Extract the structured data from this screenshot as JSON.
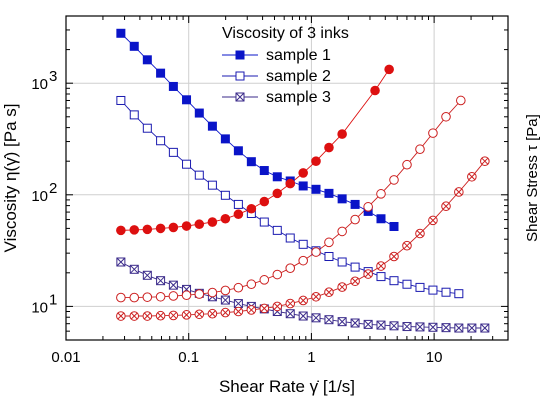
{
  "chart_data": {
    "type": "scatter",
    "title": "",
    "xlabel": "Shear Rate  γ̇ [1/s]",
    "ylabel": "Viscosity η(γ̇) [Pa s]",
    "y2label": "Shear Stress τ [Pa]",
    "xscale": "log",
    "yscale": "log",
    "xlim": [
      0.01,
      40
    ],
    "ylim": [
      5,
      4000
    ],
    "grid": true,
    "x_tick_labels": [
      "0.01",
      "0.1",
      "1",
      "10"
    ],
    "x_tick_values": [
      0.01,
      0.1,
      1,
      10
    ],
    "y_tick_values": [
      10,
      100,
      1000
    ],
    "y_tick_bases": [
      "10",
      "10",
      "10"
    ],
    "y_tick_exponents": [
      "1",
      "2",
      "3"
    ],
    "legend": {
      "title": "Viscosity of 3 inks",
      "placement": "top-center"
    },
    "series": [
      {
        "name": "sample 1",
        "quantity": "viscosity",
        "color": "#0a14c8",
        "marker": "filled-square",
        "x": [
          0.028,
          0.036,
          0.046,
          0.059,
          0.075,
          0.096,
          0.122,
          0.156,
          0.199,
          0.254,
          0.324,
          0.413,
          0.527,
          0.672,
          0.857,
          1.09,
          1.39,
          1.78,
          2.27,
          2.9,
          3.69,
          4.71
        ],
        "y": [
          2800,
          2140,
          1620,
          1230,
          935,
          710,
          540,
          412,
          317,
          248,
          198,
          165,
          145,
          133,
          120,
          112,
          103,
          92,
          82,
          71,
          61,
          52
        ]
      },
      {
        "name": "sample 2",
        "quantity": "viscosity",
        "color": "#1a1ab0",
        "marker": "open-square",
        "x": [
          0.028,
          0.036,
          0.046,
          0.059,
          0.075,
          0.096,
          0.122,
          0.156,
          0.199,
          0.254,
          0.324,
          0.413,
          0.527,
          0.672,
          0.857,
          1.09,
          1.39,
          1.78,
          2.27,
          2.9,
          3.69,
          4.71,
          6.01,
          7.67,
          9.78,
          12.5,
          15.9
        ],
        "y": [
          700,
          520,
          395,
          305,
          240,
          188,
          150,
          122,
          99,
          82,
          68,
          57,
          48,
          41,
          36,
          31.5,
          28,
          25,
          22.5,
          20.5,
          18.5,
          17,
          15.8,
          14.8,
          14,
          13.4,
          13
        ]
      },
      {
        "name": "sample 3",
        "quantity": "viscosity",
        "color": "#3a2a8a",
        "marker": "crossed-square",
        "x": [
          0.028,
          0.036,
          0.046,
          0.059,
          0.075,
          0.096,
          0.122,
          0.156,
          0.199,
          0.254,
          0.324,
          0.413,
          0.527,
          0.672,
          0.857,
          1.09,
          1.39,
          1.78,
          2.27,
          2.9,
          3.69,
          4.71,
          6.01,
          7.67,
          9.78,
          12.5,
          15.9,
          20.3,
          25.9
        ],
        "y": [
          25,
          21.5,
          19,
          17,
          15.5,
          14.2,
          13.1,
          12.2,
          11.4,
          10.6,
          10,
          9.5,
          9.0,
          8.6,
          8.2,
          7.9,
          7.6,
          7.3,
          7.1,
          6.9,
          6.8,
          6.7,
          6.6,
          6.55,
          6.5,
          6.45,
          6.4,
          6.4,
          6.4
        ]
      },
      {
        "name": "",
        "quantity": "shear stress",
        "color": "#dd1010",
        "marker": "filled-circle",
        "x": [
          0.028,
          0.036,
          0.046,
          0.059,
          0.075,
          0.096,
          0.122,
          0.156,
          0.199,
          0.254,
          0.324,
          0.413,
          0.527,
          0.672,
          0.857,
          1.09,
          1.39,
          1.78,
          3.3,
          4.3
        ],
        "y": [
          48,
          48.5,
          49,
          50,
          51,
          52.5,
          54.5,
          57,
          61,
          67,
          75,
          87,
          103,
          126,
          157,
          200,
          265,
          350,
          860,
          1330
        ]
      },
      {
        "name": "",
        "quantity": "shear stress",
        "color": "#cc2020",
        "marker": "open-circle",
        "x": [
          0.028,
          0.036,
          0.046,
          0.059,
          0.075,
          0.096,
          0.122,
          0.156,
          0.199,
          0.254,
          0.324,
          0.413,
          0.527,
          0.672,
          0.857,
          1.09,
          1.39,
          1.78,
          2.27,
          2.9,
          3.69,
          4.71,
          6.01,
          7.67,
          9.78,
          12.5,
          16.5
        ],
        "y": [
          12,
          12,
          12.1,
          12.2,
          12.4,
          12.6,
          12.9,
          13.3,
          13.9,
          14.7,
          15.8,
          17.3,
          19.3,
          22,
          25.7,
          30.7,
          37.5,
          47,
          60,
          78,
          102,
          136,
          186,
          256,
          357,
          500,
          700
        ]
      },
      {
        "name": "",
        "quantity": "shear stress",
        "color": "#cc2020",
        "marker": "crossed-circle",
        "x": [
          0.028,
          0.036,
          0.046,
          0.059,
          0.075,
          0.096,
          0.122,
          0.156,
          0.199,
          0.254,
          0.324,
          0.413,
          0.527,
          0.672,
          0.857,
          1.09,
          1.39,
          1.78,
          2.27,
          2.9,
          3.69,
          4.71,
          6.01,
          7.67,
          9.78,
          12.5,
          15.9,
          20.3,
          25.9
        ],
        "y": [
          8.2,
          8.2,
          8.2,
          8.25,
          8.3,
          8.4,
          8.5,
          8.6,
          8.8,
          9.0,
          9.3,
          9.6,
          10,
          10.6,
          11.3,
          12.2,
          13.4,
          14.9,
          16.8,
          19.5,
          23,
          28,
          35,
          45,
          59,
          79,
          106,
          145,
          200
        ]
      }
    ]
  }
}
